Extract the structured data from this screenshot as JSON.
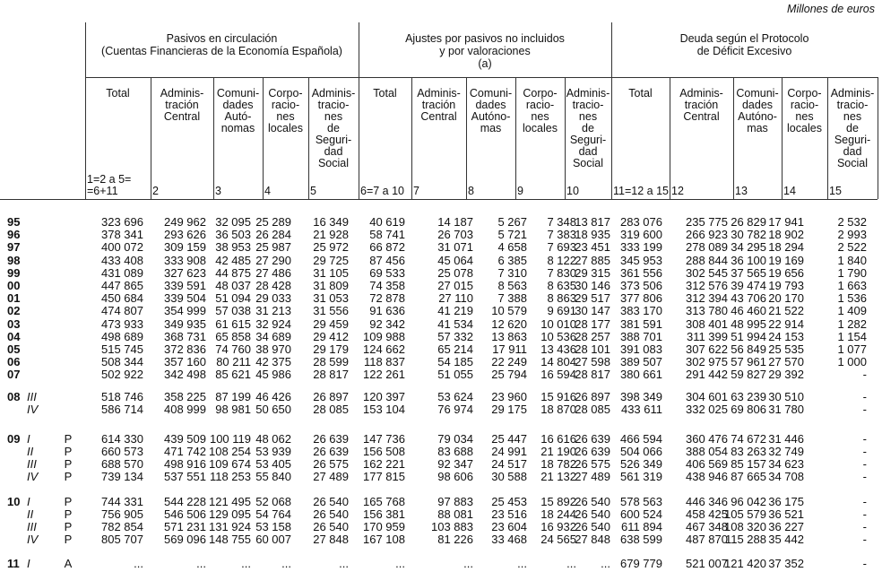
{
  "meta": {
    "units_label": "Millones de euros"
  },
  "table": {
    "groups": [
      {
        "title": "Pasivos en circulación\n(Cuentas Financieras de la Economía Española)"
      },
      {
        "title": "Ajustes por pasivos no incluidos\ny por valoraciones\n(a)"
      },
      {
        "title": "Deuda según el Protocolo\nde Déficit Excesivo"
      }
    ],
    "columns": [
      {
        "group": 0,
        "title": "Total",
        "number": "1=2 a 5=\n=6+11"
      },
      {
        "group": 0,
        "title": "Adminis-\ntración\nCentral",
        "number": "2"
      },
      {
        "group": 0,
        "title": "Comuni-\ndades\nAutó-\nnomas",
        "number": "3"
      },
      {
        "group": 0,
        "title": "Corpo-\nracio-\nnes\nlocales",
        "number": "4"
      },
      {
        "group": 0,
        "title": "Adminis-\ntracio-\nnes\nde\nSeguri-\ndad\nSocial",
        "number": "5"
      },
      {
        "group": 1,
        "title": "Total",
        "number": "6=7 a 10"
      },
      {
        "group": 1,
        "title": "Adminis-\ntración\nCentral",
        "number": "7"
      },
      {
        "group": 1,
        "title": "Comuni-\ndades\nAutóno-\nmas",
        "number": "8"
      },
      {
        "group": 1,
        "title": "Corpo-\nracio-\nnes\nlocales",
        "number": "9"
      },
      {
        "group": 1,
        "title": "Adminis-\ntracio-\nnes\nde\nSeguri-\ndad\nSocial",
        "number": "10"
      },
      {
        "group": 2,
        "title": "Total",
        "number": "11=12 a 15"
      },
      {
        "group": 2,
        "title": "Adminis-\ntración\nCentral",
        "number": "12"
      },
      {
        "group": 2,
        "title": "Comuni-\ndades\nAutóno-\nmas",
        "number": "13"
      },
      {
        "group": 2,
        "title": "Corpo-\nracio-\nnes\nlocales",
        "number": "14"
      },
      {
        "group": 2,
        "title": "Adminis-\ntracio-\nnes\nde\nSeguri-\ndad\nSocial",
        "number": "15"
      }
    ],
    "rows": [
      {
        "year": "95",
        "quarter": "",
        "flag": "",
        "values": [
          "323 696",
          "249 962",
          "32 095",
          "25 289",
          "16 349",
          "40 619",
          "14 187",
          "5 267",
          "7 348",
          "13 817",
          "283 076",
          "235 775",
          "26 829",
          "17 941",
          "2 532"
        ]
      },
      {
        "year": "96",
        "quarter": "",
        "flag": "",
        "values": [
          "378 341",
          "293 626",
          "36 503",
          "26 284",
          "21 928",
          "58 741",
          "26 703",
          "5 721",
          "7 383",
          "18 935",
          "319 600",
          "266 923",
          "30 782",
          "18 902",
          "2 993"
        ]
      },
      {
        "year": "97",
        "quarter": "",
        "flag": "",
        "values": [
          "400 072",
          "309 159",
          "38 953",
          "25 987",
          "25 972",
          "66 872",
          "31 071",
          "4 658",
          "7 693",
          "23 451",
          "333 199",
          "278 089",
          "34 295",
          "18 294",
          "2 522"
        ]
      },
      {
        "year": "98",
        "quarter": "",
        "flag": "",
        "values": [
          "433 408",
          "333 908",
          "42 485",
          "27 290",
          "29 725",
          "87 456",
          "45 064",
          "6 385",
          "8 122",
          "27 885",
          "345 953",
          "288 844",
          "36 100",
          "19 169",
          "1 840"
        ]
      },
      {
        "year": "99",
        "quarter": "",
        "flag": "",
        "values": [
          "431 089",
          "327 623",
          "44 875",
          "27 486",
          "31 105",
          "69 533",
          "25 078",
          "7 310",
          "7 830",
          "29 315",
          "361 556",
          "302 545",
          "37 565",
          "19 656",
          "1 790"
        ]
      },
      {
        "year": "00",
        "quarter": "",
        "flag": "",
        "values": [
          "447 865",
          "339 591",
          "48 037",
          "28 428",
          "31 809",
          "74 358",
          "27 015",
          "8 563",
          "8 635",
          "30 146",
          "373 506",
          "312 576",
          "39 474",
          "19 793",
          "1 663"
        ]
      },
      {
        "year": "01",
        "quarter": "",
        "flag": "",
        "values": [
          "450 684",
          "339 504",
          "51 094",
          "29 033",
          "31 053",
          "72 878",
          "27 110",
          "7 388",
          "8 863",
          "29 517",
          "377 806",
          "312 394",
          "43 706",
          "20 170",
          "1 536"
        ]
      },
      {
        "year": "02",
        "quarter": "",
        "flag": "",
        "values": [
          "474 807",
          "354 999",
          "57 038",
          "31 213",
          "31 556",
          "91 636",
          "41 219",
          "10 579",
          "9 691",
          "30 147",
          "383 170",
          "313 780",
          "46 460",
          "21 522",
          "1 409"
        ]
      },
      {
        "year": "03",
        "quarter": "",
        "flag": "",
        "values": [
          "473 933",
          "349 935",
          "61 615",
          "32 924",
          "29 459",
          "92 342",
          "41 534",
          "12 620",
          "10 010",
          "28 177",
          "381 591",
          "308 401",
          "48 995",
          "22 914",
          "1 282"
        ]
      },
      {
        "year": "04",
        "quarter": "",
        "flag": "",
        "values": [
          "498 689",
          "368 731",
          "65 858",
          "34 689",
          "29 412",
          "109 988",
          "57 332",
          "13 863",
          "10 536",
          "28 257",
          "388 701",
          "311 399",
          "51 994",
          "24 153",
          "1 154"
        ]
      },
      {
        "year": "05",
        "quarter": "",
        "flag": "",
        "values": [
          "515 745",
          "372 836",
          "74 760",
          "38 970",
          "29 179",
          "124 662",
          "65 214",
          "17 911",
          "13 436",
          "28 101",
          "391 083",
          "307 622",
          "56 849",
          "25 535",
          "1 077"
        ]
      },
      {
        "year": "06",
        "quarter": "",
        "flag": "",
        "values": [
          "508 344",
          "357 160",
          "80 211",
          "42 375",
          "28 599",
          "118 837",
          "54 185",
          "22 249",
          "14 804",
          "27 598",
          "389 507",
          "302 975",
          "57 961",
          "27 570",
          "1 000"
        ]
      },
      {
        "year": "07",
        "quarter": "",
        "flag": "",
        "values": [
          "502 922",
          "342 498",
          "85 621",
          "45 986",
          "28 817",
          "122 261",
          "51 055",
          "25 794",
          "16 594",
          "28 817",
          "380 661",
          "291 442",
          "59 827",
          "29 392",
          "-"
        ]
      },
      {
        "year": "08",
        "quarter": "III",
        "flag": "",
        "values": [
          "518 746",
          "358 225",
          "87 199",
          "46 426",
          "26 897",
          "120 397",
          "53 624",
          "23 960",
          "15 916",
          "26 897",
          "398 349",
          "304 601",
          "63 239",
          "30 510",
          "-"
        ]
      },
      {
        "year": "",
        "quarter": "IV",
        "flag": "",
        "values": [
          "586 714",
          "408 999",
          "98 981",
          "50 650",
          "28 085",
          "153 104",
          "76 974",
          "29 175",
          "18 870",
          "28 085",
          "433 611",
          "332 025",
          "69 806",
          "31 780",
          "-"
        ]
      },
      {
        "year": "09",
        "quarter": "I",
        "flag": "P",
        "values": [
          "614 330",
          "439 509",
          "100 119",
          "48 062",
          "26 639",
          "147 736",
          "79 034",
          "25 447",
          "16 616",
          "26 639",
          "466 594",
          "360 476",
          "74 672",
          "31 446",
          "-"
        ]
      },
      {
        "year": "",
        "quarter": "II",
        "flag": "P",
        "values": [
          "660 573",
          "471 742",
          "108 254",
          "53 939",
          "26 639",
          "156 508",
          "83 688",
          "24 991",
          "21 190",
          "26 639",
          "504 066",
          "388 054",
          "83 263",
          "32 749",
          "-"
        ]
      },
      {
        "year": "",
        "quarter": "III",
        "flag": "P",
        "values": [
          "688 570",
          "498 916",
          "109 674",
          "53 405",
          "26 575",
          "162 221",
          "92 347",
          "24 517",
          "18 782",
          "26 575",
          "526 349",
          "406 569",
          "85 157",
          "34 623",
          "-"
        ]
      },
      {
        "year": "",
        "quarter": "IV",
        "flag": "P",
        "values": [
          "739 134",
          "537 551",
          "118 253",
          "55 840",
          "27 489",
          "177 815",
          "98 606",
          "30 588",
          "21 132",
          "27 489",
          "561 319",
          "438 946",
          "87 665",
          "34 708",
          "-"
        ]
      },
      {
        "year": "10",
        "quarter": "I",
        "flag": "P",
        "values": [
          "744 331",
          "544 228",
          "121 495",
          "52 068",
          "26 540",
          "165 768",
          "97 883",
          "25 453",
          "15 892",
          "26 540",
          "578 563",
          "446 346",
          "96 042",
          "36 175",
          "-"
        ]
      },
      {
        "year": "",
        "quarter": "II",
        "flag": "P",
        "values": [
          "756 905",
          "546 506",
          "129 095",
          "54 764",
          "26 540",
          "156 381",
          "88 081",
          "23 516",
          "18 244",
          "26 540",
          "600 524",
          "458 425",
          "105 579",
          "36 521",
          "-"
        ]
      },
      {
        "year": "",
        "quarter": "III",
        "flag": "P",
        "values": [
          "782 854",
          "571 231",
          "131 924",
          "53 158",
          "26 540",
          "170 959",
          "103 883",
          "23 604",
          "16 932",
          "26 540",
          "611 894",
          "467 348",
          "108 320",
          "36 227",
          "-"
        ]
      },
      {
        "year": "",
        "quarter": "IV",
        "flag": "P",
        "values": [
          "805 707",
          "569 096",
          "148 755",
          "60 007",
          "27 848",
          "167 108",
          "81 226",
          "33 468",
          "24 565",
          "27 848",
          "638 599",
          "487 870",
          "115 288",
          "35 442",
          "-"
        ]
      },
      {
        "year": "11",
        "quarter": "I",
        "flag": "A",
        "values": [
          "...",
          "...",
          "...",
          "...",
          "...",
          "...",
          "...",
          "...",
          "...",
          "...",
          "679 779",
          "521 007",
          "121 420",
          "37 352",
          "-"
        ]
      }
    ]
  }
}
